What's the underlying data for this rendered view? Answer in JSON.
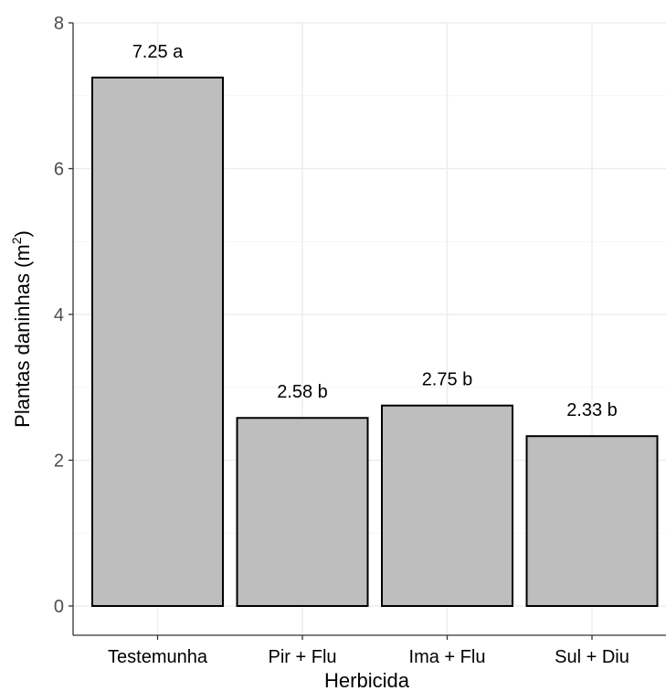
{
  "chart_data": {
    "type": "bar",
    "categories": [
      "Testemunha",
      "Pir + Flu",
      "Ima + Flu",
      "Sul + Diu"
    ],
    "values": [
      7.25,
      2.58,
      2.75,
      2.33
    ],
    "bar_labels": [
      "7.25 a",
      "2.58 b",
      "2.75 b",
      "2.33 b"
    ],
    "xlabel": "Herbicida",
    "ylabel_main": "Plantas daninhas  (m",
    "ylabel_sup": "2",
    "ylabel_close": ")",
    "ylim": [
      0,
      8
    ],
    "yticks": [
      "0",
      "2",
      "4",
      "6",
      "8"
    ],
    "grid": true,
    "bar_color": "#bebebe",
    "bar_edge_color": "#000000"
  }
}
